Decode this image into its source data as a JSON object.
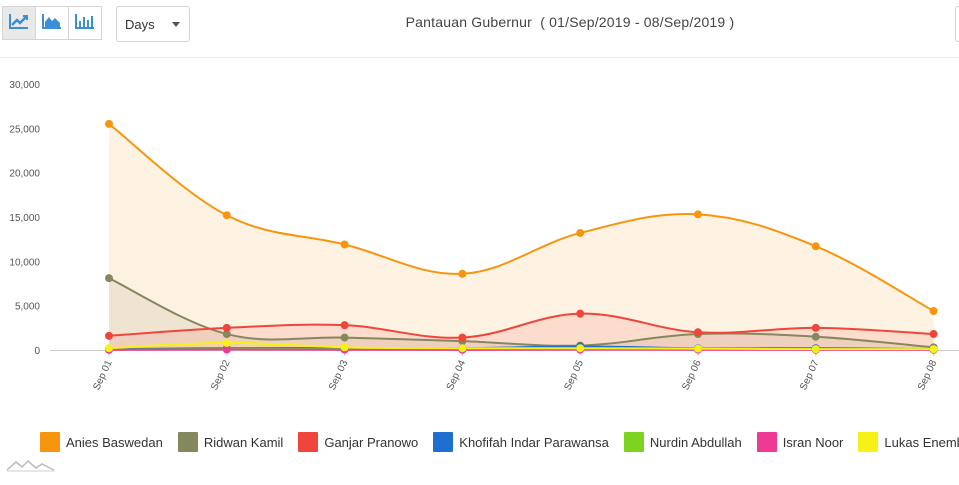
{
  "toolbar": {
    "buttons": [
      {
        "icon": "line-chart-icon",
        "active": true
      },
      {
        "icon": "area-chart-icon",
        "active": false
      },
      {
        "icon": "bar-chart-icon",
        "active": false
      }
    ],
    "period_select": {
      "value": "Days"
    },
    "icon_color": "#3b8fd6"
  },
  "chart_data": {
    "type": "area",
    "title": "Pantauan Gubernur  ( 01/Sep/2019 - 08/Sep/2019 )",
    "categories": [
      "Sep 01",
      "Sep 02",
      "Sep 03",
      "Sep 04",
      "Sep 05",
      "Sep 06",
      "Sep 07",
      "Sep 08"
    ],
    "ylim": [
      0,
      30000
    ],
    "yticks": [
      0,
      5000,
      10000,
      15000,
      20000,
      25000,
      30000
    ],
    "ytick_labels": [
      "0",
      "5,000",
      "10,000",
      "15,000",
      "20,000",
      "25,000",
      "30,000"
    ],
    "grid": false,
    "legend_position": "bottom",
    "series": [
      {
        "name": "Anies Baswedan",
        "color": "#f7960d",
        "values": [
          25500,
          15200,
          11900,
          8600,
          13200,
          15300,
          11700,
          4400
        ]
      },
      {
        "name": "Ridwan Kamil",
        "color": "#87875e",
        "values": [
          8100,
          1800,
          1400,
          1000,
          500,
          1800,
          1500,
          300
        ]
      },
      {
        "name": "Ganjar Pranowo",
        "color": "#f0453a",
        "values": [
          1600,
          2500,
          2800,
          1400,
          4100,
          2000,
          2500,
          1800
        ]
      },
      {
        "name": "Khofifah Indar Parawansa",
        "color": "#1f6fd0",
        "values": [
          100,
          200,
          200,
          200,
          400,
          200,
          200,
          100
        ]
      },
      {
        "name": "Nurdin Abdullah",
        "color": "#7ed321",
        "values": [
          50,
          100,
          80,
          60,
          100,
          80,
          60,
          50
        ]
      },
      {
        "name": "Isran Noor",
        "color": "#ee3a95",
        "values": [
          20,
          50,
          30,
          20,
          40,
          30,
          20,
          20
        ]
      },
      {
        "name": "Lukas Enembe",
        "color": "#f7f117",
        "values": [
          200,
          800,
          300,
          200,
          200,
          150,
          100,
          100
        ]
      }
    ]
  }
}
